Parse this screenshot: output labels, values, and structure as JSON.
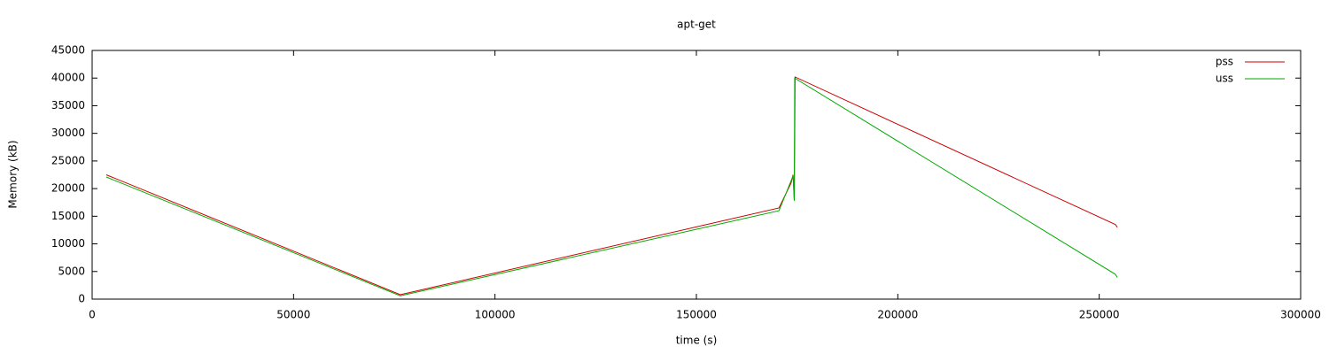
{
  "chart_data": {
    "type": "line",
    "title": "apt-get",
    "x_label": "time (s)",
    "y_label": "Memory (kB)",
    "xlim": [
      0,
      300000
    ],
    "xticks": [
      0,
      50000,
      100000,
      150000,
      200000,
      250000,
      300000
    ],
    "ylim": [
      0,
      45000
    ],
    "yticks": [
      0,
      5000,
      10000,
      15000,
      20000,
      25000,
      30000,
      35000,
      40000,
      45000
    ],
    "grid": false,
    "legend": "top-right",
    "series": [
      {
        "name": "pss",
        "color": "#cc0000",
        "x": [
          3500,
          76500,
          170500,
          173500,
          174000,
          174300,
          174500,
          254000,
          254500
        ],
        "values": [
          22500,
          800,
          16500,
          21000,
          22500,
          18000,
          40200,
          13500,
          13000
        ]
      },
      {
        "name": "uss",
        "color": "#00aa00",
        "x": [
          3500,
          76500,
          170500,
          174000,
          174300,
          174400,
          254000,
          254500
        ],
        "values": [
          22100,
          600,
          16000,
          22300,
          17800,
          40000,
          4500,
          3900
        ]
      }
    ]
  }
}
